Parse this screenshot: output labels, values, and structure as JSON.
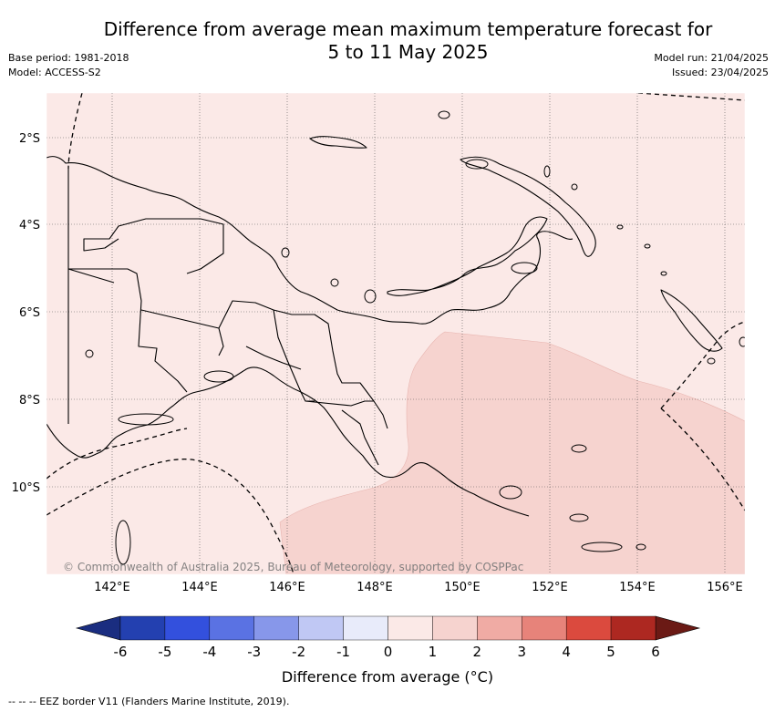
{
  "title": {
    "line1": "Difference from average mean maximum temperature forecast for",
    "line2": "5 to 11 May 2025"
  },
  "meta": {
    "base_period": "Base period: 1981-2018",
    "model": "Model: ACCESS-S2",
    "model_run": "Model run: 21/04/2025",
    "issued": "Issued: 23/04/2025"
  },
  "map": {
    "lat_labels": [
      "2°S",
      "4°S",
      "6°S",
      "8°S",
      "10°S"
    ],
    "lon_labels": [
      "142°E",
      "144°E",
      "146°E",
      "148°E",
      "150°E",
      "152°E",
      "154°E",
      "156°E"
    ],
    "credit": "© Commonwealth of Australia 2025, Bureau of Meteorology, supported by COSPPac",
    "colors": {
      "zero_to_one": "#fbe9e7",
      "one_to_two": "#f6d3cf",
      "land_outline": "#000000"
    }
  },
  "colorbar": {
    "ticks": [
      "-6",
      "-5",
      "-4",
      "-3",
      "-2",
      "-1",
      "0",
      "1",
      "2",
      "3",
      "4",
      "5",
      "6"
    ],
    "under_color": "#1a2d80",
    "over_color": "#6b1a15",
    "colors": [
      "#2340b0",
      "#3350dd",
      "#5a72e3",
      "#8797ea",
      "#c0c8f4",
      "#e8ebfa",
      "#fbe9e7",
      "#f6d3cf",
      "#f0aba4",
      "#e7837a",
      "#db4a3e",
      "#ad2821"
    ],
    "label": "Difference from average (°C)"
  },
  "footnote": "-- -- -- EEZ border V11 (Flanders Marine Institute, 2019)."
}
